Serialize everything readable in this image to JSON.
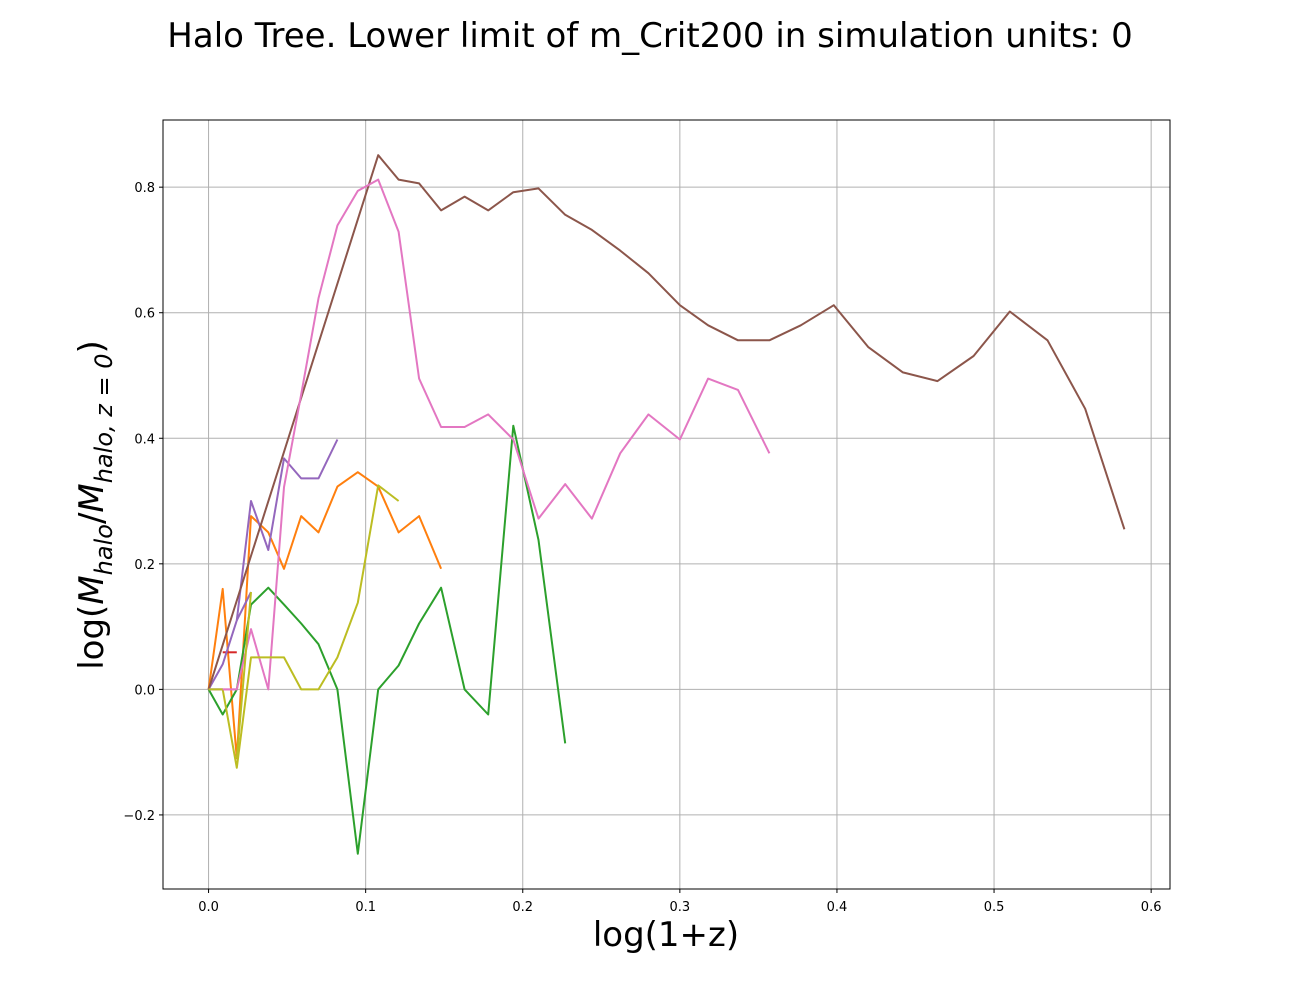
{
  "chart_data": {
    "type": "line",
    "title": "Halo Tree. Lower limit of m_Crit200 in simulation units: 0",
    "xlabel": "log(1+z)",
    "ylabel": {
      "prefix": "log(",
      "var1": "M",
      "sub1": "halo",
      "slash": "/",
      "var2": "M",
      "sub2": "halo, z = 0",
      "suffix": ")"
    },
    "xlim": [
      -0.029,
      0.612
    ],
    "ylim": [
      -0.318,
      0.907
    ],
    "xticks": [
      0.0,
      0.1,
      0.2,
      0.3,
      0.4,
      0.5,
      0.6
    ],
    "xtick_labels": [
      "0.0",
      "0.1",
      "0.2",
      "0.3",
      "0.4",
      "0.5",
      "0.6"
    ],
    "yticks": [
      -0.2,
      0.0,
      0.2,
      0.4,
      0.6,
      0.8
    ],
    "ytick_labels": [
      "−0.2",
      "0.0",
      "0.2",
      "0.4",
      "0.6",
      "0.8"
    ],
    "grid": true,
    "legend": "none",
    "series": [
      {
        "color": "#1f77b4",
        "points": [
          [
            0.0,
            0.0
          ],
          [
            0.009,
            0.0
          ]
        ]
      },
      {
        "color": "#ff7f0e",
        "points": [
          [
            0.0,
            0.0
          ],
          [
            0.009,
            0.16
          ],
          [
            0.018,
            -0.11
          ],
          [
            0.027,
            0.276
          ],
          [
            0.038,
            0.25
          ],
          [
            0.048,
            0.192
          ],
          [
            0.059,
            0.276
          ],
          [
            0.07,
            0.25
          ],
          [
            0.082,
            0.323
          ],
          [
            0.095,
            0.346
          ],
          [
            0.108,
            0.323
          ],
          [
            0.121,
            0.25
          ],
          [
            0.134,
            0.276
          ],
          [
            0.148,
            0.192
          ]
        ]
      },
      {
        "color": "#2ca02c",
        "points": [
          [
            0.0,
            0.0
          ],
          [
            0.009,
            -0.04
          ],
          [
            0.018,
            0.0
          ],
          [
            0.027,
            0.135
          ],
          [
            0.038,
            0.162
          ],
          [
            0.048,
            0.135
          ],
          [
            0.059,
            0.105
          ],
          [
            0.07,
            0.072
          ],
          [
            0.082,
            0.0
          ],
          [
            0.095,
            -0.262
          ],
          [
            0.108,
            0.0
          ],
          [
            0.121,
            0.038
          ],
          [
            0.134,
            0.105
          ],
          [
            0.148,
            0.162
          ],
          [
            0.163,
            0.0
          ],
          [
            0.178,
            -0.04
          ],
          [
            0.194,
            0.42
          ],
          [
            0.21,
            0.238
          ],
          [
            0.227,
            -0.086
          ]
        ]
      },
      {
        "color": "#d62728",
        "points": [
          [
            0.009,
            0.059
          ],
          [
            0.018,
            0.059
          ]
        ]
      },
      {
        "color": "#9467bd",
        "points": [
          [
            0.0,
            0.0
          ],
          [
            0.009,
            0.04
          ],
          [
            0.018,
            0.11
          ],
          [
            0.027,
            0.3
          ],
          [
            0.038,
            0.222
          ],
          [
            0.048,
            0.368
          ],
          [
            0.059,
            0.336
          ],
          [
            0.07,
            0.336
          ],
          [
            0.082,
            0.398
          ]
        ]
      },
      {
        "color": "#8c564b",
        "points": [
          [
            0.0,
            0.0
          ],
          [
            0.108,
            0.851
          ],
          [
            0.121,
            0.812
          ],
          [
            0.134,
            0.806
          ],
          [
            0.148,
            0.763
          ],
          [
            0.163,
            0.785
          ],
          [
            0.178,
            0.763
          ],
          [
            0.194,
            0.792
          ],
          [
            0.21,
            0.798
          ],
          [
            0.227,
            0.756
          ],
          [
            0.244,
            0.732
          ],
          [
            0.262,
            0.699
          ],
          [
            0.28,
            0.663
          ],
          [
            0.3,
            0.612
          ],
          [
            0.318,
            0.58
          ],
          [
            0.337,
            0.556
          ],
          [
            0.357,
            0.556
          ],
          [
            0.377,
            0.58
          ],
          [
            0.398,
            0.612
          ],
          [
            0.42,
            0.545
          ],
          [
            0.442,
            0.505
          ],
          [
            0.464,
            0.491
          ],
          [
            0.487,
            0.531
          ],
          [
            0.51,
            0.602
          ],
          [
            0.534,
            0.556
          ],
          [
            0.558,
            0.447
          ],
          [
            0.583,
            0.255
          ]
        ]
      },
      {
        "color": "#e377c2",
        "points": [
          [
            0.0,
            0.0
          ],
          [
            0.009,
            0.0
          ],
          [
            0.018,
            0.0
          ],
          [
            0.027,
            0.096
          ],
          [
            0.038,
            0.0
          ],
          [
            0.048,
            0.322
          ],
          [
            0.059,
            0.47
          ],
          [
            0.07,
            0.623
          ],
          [
            0.082,
            0.739
          ],
          [
            0.095,
            0.794
          ],
          [
            0.108,
            0.812
          ],
          [
            0.121,
            0.729
          ],
          [
            0.134,
            0.495
          ],
          [
            0.148,
            0.418
          ],
          [
            0.163,
            0.418
          ],
          [
            0.178,
            0.438
          ],
          [
            0.194,
            0.398
          ],
          [
            0.21,
            0.272
          ],
          [
            0.227,
            0.327
          ],
          [
            0.244,
            0.272
          ],
          [
            0.262,
            0.376
          ],
          [
            0.28,
            0.438
          ],
          [
            0.3,
            0.398
          ],
          [
            0.318,
            0.495
          ],
          [
            0.337,
            0.477
          ],
          [
            0.357,
            0.376
          ]
        ]
      },
      {
        "color": "#bcbd22",
        "points": [
          [
            0.0,
            0.0
          ],
          [
            0.009,
            0.0
          ],
          [
            0.018,
            -0.125
          ],
          [
            0.027,
            0.051
          ],
          [
            0.038,
            0.051
          ],
          [
            0.048,
            0.051
          ],
          [
            0.059,
            0.0
          ],
          [
            0.07,
            0.0
          ],
          [
            0.082,
            0.051
          ],
          [
            0.095,
            0.138
          ],
          [
            0.108,
            0.325
          ],
          [
            0.121,
            0.3
          ]
        ]
      },
      {
        "color": "#e377c2",
        "points": [
          [
            0.009,
            0.0
          ],
          [
            0.018,
            0.0
          ]
        ]
      },
      {
        "color": "#9467bd",
        "points": [
          [
            0.018,
            0.11
          ],
          [
            0.027,
            0.155
          ]
        ]
      },
      {
        "color": "#bcbd22",
        "points": [
          [
            0.018,
            -0.11
          ],
          [
            0.027,
            0.155
          ]
        ]
      }
    ]
  }
}
